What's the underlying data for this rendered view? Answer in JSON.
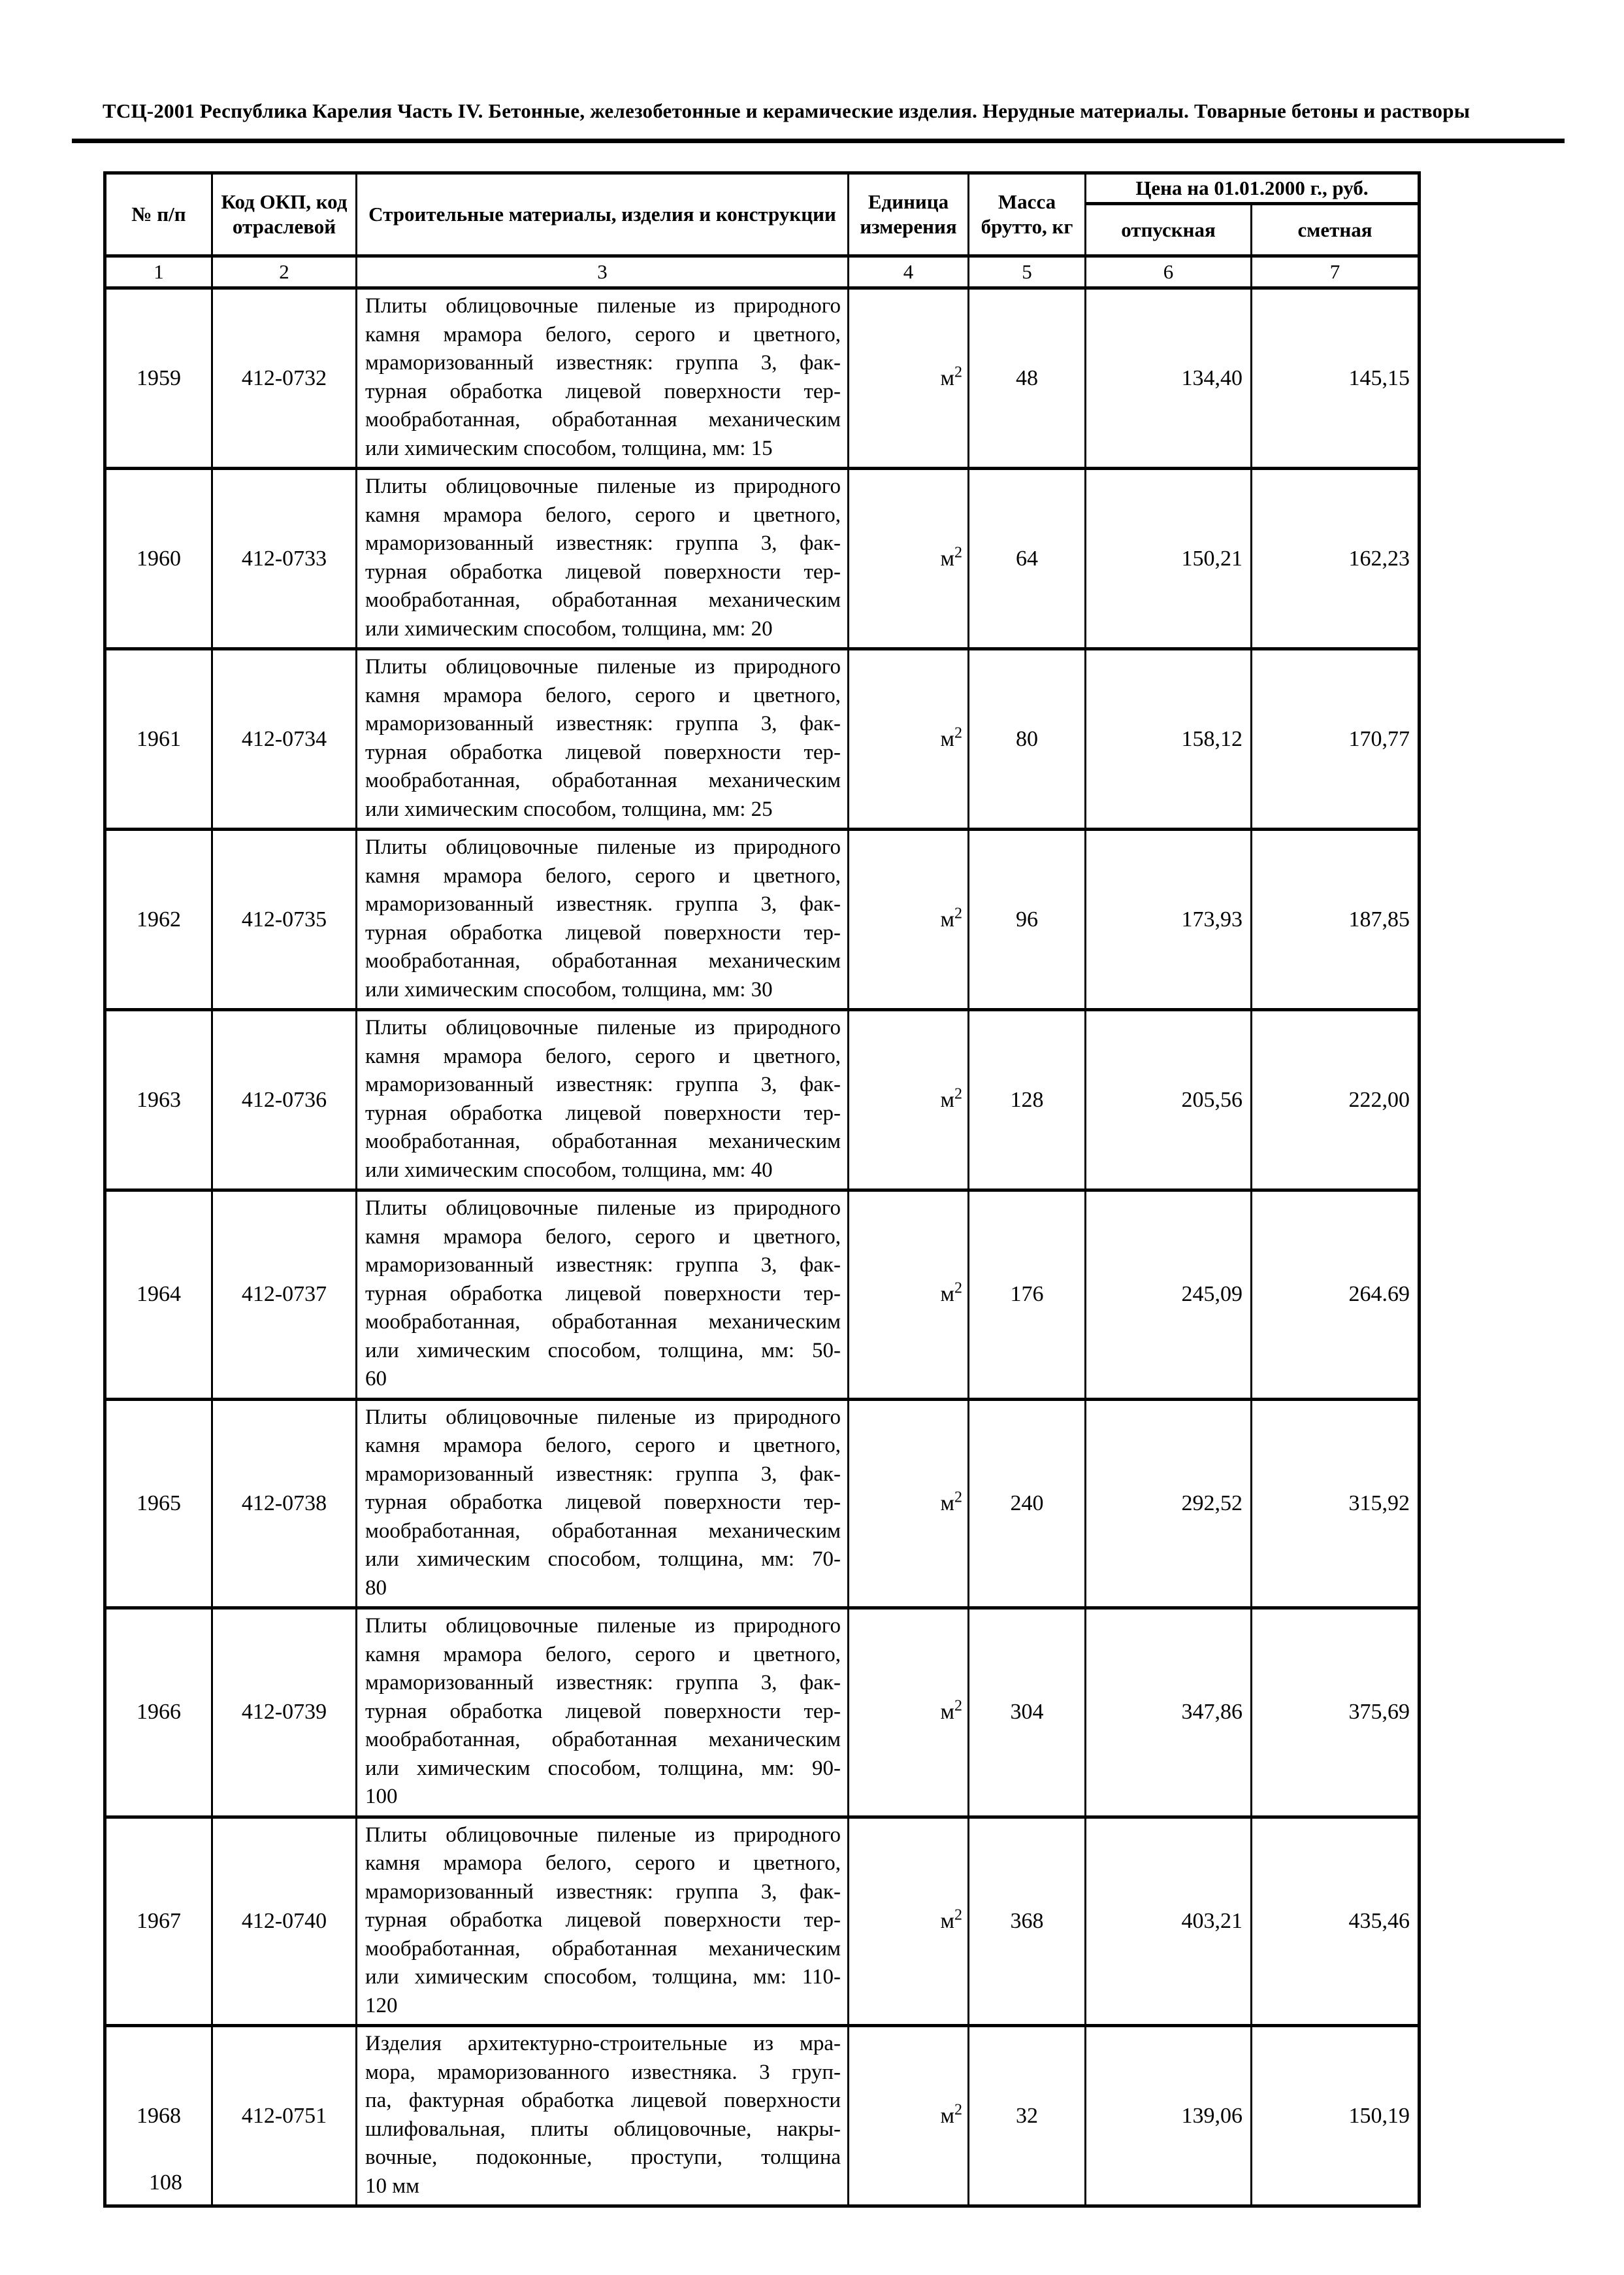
{
  "page": {
    "header": "ТСЦ-2001 Республика Карелия Часть IV. Бетонные, железобетонные и керамические изделия. Нерудные материалы. Товарные бетоны и растворы",
    "page_number": "108"
  },
  "table": {
    "headers": {
      "num": "№ п/п",
      "code": "Код ОКП, код отраслевой",
      "materials": "Строительные материалы, изделия и конструкции",
      "unit": "Единица измерения",
      "mass": "Масса брутто, кг",
      "price_group": "Цена на 01.01.2000 г., руб.",
      "price_release": "отпускная",
      "price_estimate": "сметная"
    },
    "column_numbers": [
      "1",
      "2",
      "3",
      "4",
      "5",
      "6",
      "7"
    ],
    "rows": [
      {
        "num": "1959",
        "code": "412-0732",
        "desc_lines": [
          "Плиты облицовочные пиленые из природного",
          "камня мрамора белого, серого и цветного,",
          "мраморизованный известняк: группа 3, фак-",
          "турная обработка лицевой поверхности тер-",
          "мообработанная, обработанная механическим",
          "или химическим способом, толщина, мм: 15"
        ],
        "unit": "м²",
        "mass": "48",
        "price_release": "134,40",
        "price_estimate": "145,15"
      },
      {
        "num": "1960",
        "code": "412-0733",
        "desc_lines": [
          "Плиты облицовочные пиленые из природного",
          "камня мрамора белого, серого и цветного,",
          "мраморизованный известняк: группа 3, фак-",
          "турная обработка лицевой поверхности тер-",
          "мообработанная, обработанная механическим",
          "или химическим способом, толщина, мм: 20"
        ],
        "unit": "м²",
        "mass": "64",
        "price_release": "150,21",
        "price_estimate": "162,23"
      },
      {
        "num": "1961",
        "code": "412-0734",
        "desc_lines": [
          "Плиты облицовочные пиленые из природного",
          "камня мрамора белого, серого и цветного,",
          "мраморизованный известняк: группа 3, фак-",
          "турная обработка лицевой поверхности тер-",
          "мообработанная, обработанная механическим",
          "или химическим способом, толщина, мм: 25"
        ],
        "unit": "м²",
        "mass": "80",
        "price_release": "158,12",
        "price_estimate": "170,77"
      },
      {
        "num": "1962",
        "code": "412-0735",
        "desc_lines": [
          "Плиты облицовочные пиленые из природного",
          "камня мрамора белого, серого и цветного,",
          "мраморизованный известняк. группа 3, фак-",
          "турная обработка лицевой поверхности тер-",
          "мообработанная, обработанная механическим",
          "или химическим способом, толщина, мм: 30"
        ],
        "unit": "м²",
        "mass": "96",
        "price_release": "173,93",
        "price_estimate": "187,85"
      },
      {
        "num": "1963",
        "code": "412-0736",
        "desc_lines": [
          "Плиты облицовочные пиленые из природного",
          "камня мрамора белого, серого и цветного,",
          "мраморизованный известняк: группа 3, фак-",
          "турная обработка лицевой поверхности тер-",
          "мообработанная, обработанная механическим",
          "или химическим способом, толщина, мм: 40"
        ],
        "unit": "м²",
        "mass": "128",
        "price_release": "205,56",
        "price_estimate": "222,00"
      },
      {
        "num": "1964",
        "code": "412-0737",
        "desc_lines": [
          "Плиты облицовочные пиленые из природного",
          "камня мрамора белого, серого и цветного,",
          "мраморизованный известняк: группа 3, фак-",
          "турная обработка лицевой поверхности тер-",
          "мообработанная, обработанная механическим",
          "или химическим способом, толщина, мм: 50-",
          "60"
        ],
        "unit": "м²",
        "mass": "176",
        "price_release": "245,09",
        "price_estimate": "264.69"
      },
      {
        "num": "1965",
        "code": "412-0738",
        "desc_lines": [
          "Плиты облицовочные пиленые из природного",
          "камня мрамора белого, серого и цветного,",
          "мраморизованный известняк: группа 3, фак-",
          "турная обработка лицевой поверхности тер-",
          "мообработанная, обработанная механическим",
          "или химическим способом, толщина, мм: 70-",
          "80"
        ],
        "unit": "м²",
        "mass": "240",
        "price_release": "292,52",
        "price_estimate": "315,92"
      },
      {
        "num": "1966",
        "code": "412-0739",
        "desc_lines": [
          "Плиты облицовочные пиленые из природного",
          "камня мрамора белого, серого и цветного,",
          "мраморизованный известняк: группа 3, фак-",
          "турная обработка лицевой поверхности тер-",
          "мообработанная, обработанная механическим",
          "или химическим способом, толщина, мм: 90-",
          "100"
        ],
        "unit": "м²",
        "mass": "304",
        "price_release": "347,86",
        "price_estimate": "375,69"
      },
      {
        "num": "1967",
        "code": "412-0740",
        "desc_lines": [
          "Плиты облицовочные пиленые из природного",
          "камня мрамора белого, серого и цветного,",
          "мраморизованный известняк: группа 3, фак-",
          "турная обработка лицевой поверхности тер-",
          "мообработанная, обработанная механическим",
          "или химическим способом, толщина, мм: 110-",
          "120"
        ],
        "unit": "м²",
        "mass": "368",
        "price_release": "403,21",
        "price_estimate": "435,46"
      },
      {
        "num": "1968",
        "code": "412-0751",
        "desc_lines": [
          "Изделия архитектурно-строительные из мра-",
          "мора, мраморизованного известняка. 3 груп-",
          "па, фактурная обработка лицевой поверхности",
          "шлифовальная, плиты облицовочные, накры-",
          "вочные, подоконные, проступи, толщина",
          "10 мм"
        ],
        "unit": "м²",
        "mass": "32",
        "price_release": "139,06",
        "price_estimate": "150,19"
      }
    ]
  }
}
